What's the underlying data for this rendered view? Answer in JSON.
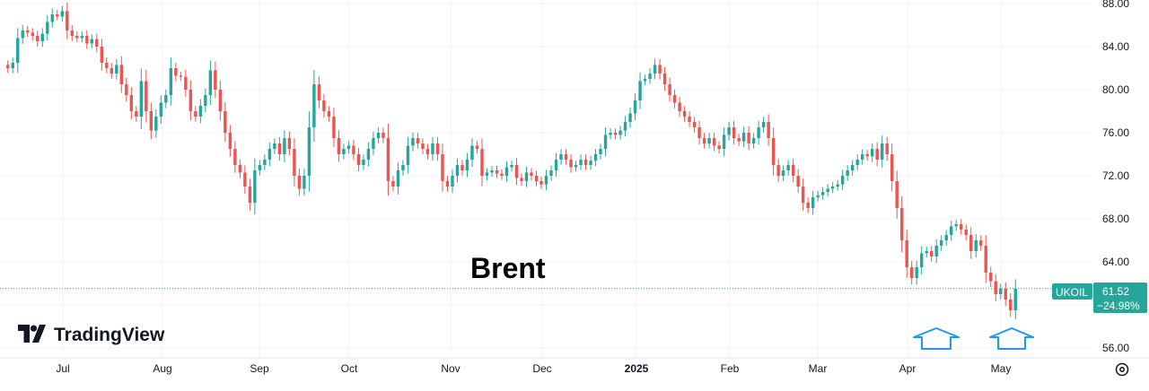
{
  "chart_data": {
    "type": "candlestick",
    "title": "",
    "annotation": "Brent",
    "watermark": "TradingView",
    "symbol": "UKOIL",
    "last_price": "61.52",
    "change_pct": "−24.98%",
    "ylim": [
      55,
      88.5
    ],
    "y_ticks": [
      "56.00",
      "60.00",
      "64.00",
      "68.00",
      "72.00",
      "76.00",
      "80.00",
      "84.00",
      "88.00"
    ],
    "x_ticks": [
      {
        "label": "Jul",
        "bold": false,
        "month_index": 0
      },
      {
        "label": "Aug",
        "bold": false,
        "month_index": 1
      },
      {
        "label": "Sep",
        "bold": false,
        "month_index": 2
      },
      {
        "label": "Oct",
        "bold": false,
        "month_index": 3
      },
      {
        "label": "Nov",
        "bold": false,
        "month_index": 4
      },
      {
        "label": "Dec",
        "bold": false,
        "month_index": 5
      },
      {
        "label": "2025",
        "bold": true,
        "month_index": 6
      },
      {
        "label": "Feb",
        "bold": false,
        "month_index": 7
      },
      {
        "label": "Mar",
        "bold": false,
        "month_index": 8
      },
      {
        "label": "Apr",
        "bold": false,
        "month_index": 9
      },
      {
        "label": "May",
        "bold": false,
        "month_index": 10
      }
    ],
    "close": [
      82.0,
      82.5,
      84.8,
      85.5,
      85.3,
      85.0,
      84.5,
      85.2,
      86.3,
      87.0,
      86.8,
      87.3,
      85.5,
      85.0,
      84.8,
      85.0,
      84.3,
      84.7,
      84.0,
      82.5,
      82.0,
      81.5,
      82.3,
      80.5,
      79.5,
      78.0,
      77.5,
      80.8,
      78.0,
      76.2,
      77.5,
      78.8,
      79.5,
      82.0,
      81.3,
      81.2,
      80.0,
      78.0,
      77.5,
      78.5,
      79.5,
      81.8,
      80.0,
      78.0,
      76.0,
      74.5,
      73.0,
      72.3,
      71.0,
      69.5,
      72.5,
      73.0,
      73.5,
      74.5,
      75.0,
      74.0,
      75.5,
      74.5,
      72.0,
      70.8,
      72.0,
      76.5,
      80.5,
      79.0,
      78.0,
      77.5,
      75.5,
      74.0,
      74.5,
      74.8,
      74.0,
      73.0,
      73.5,
      74.5,
      75.5,
      76.0,
      75.5,
      71.5,
      71.0,
      72.5,
      73.0,
      74.8,
      75.5,
      75.0,
      74.5,
      74.0,
      75.0,
      74.0,
      71.5,
      71.0,
      72.0,
      73.0,
      72.5,
      73.5,
      74.8,
      74.5,
      72.0,
      72.3,
      72.5,
      72.2,
      72.0,
      72.8,
      73.0,
      71.8,
      71.5,
      72.3,
      72.0,
      71.5,
      71.2,
      72.0,
      72.5,
      73.5,
      74.0,
      73.5,
      72.8,
      73.0,
      73.5,
      73.0,
      73.4,
      74.0,
      74.5,
      75.8,
      76.0,
      75.8,
      76.2,
      77.0,
      77.8,
      79.0,
      80.8,
      81.0,
      81.5,
      82.3,
      81.5,
      80.5,
      79.5,
      78.8,
      78.0,
      77.5,
      77.0,
      76.5,
      75.5,
      75.0,
      75.5,
      74.8,
      74.5,
      75.8,
      76.5,
      75.5,
      75.2,
      76.0,
      75.0,
      75.5,
      76.5,
      77.0,
      75.5,
      73.0,
      72.0,
      72.5,
      73.0,
      72.0,
      71.0,
      69.5,
      69.0,
      70.0,
      70.2,
      70.5,
      70.8,
      71.0,
      71.2,
      72.0,
      72.5,
      73.0,
      73.5,
      74.0,
      73.8,
      74.5,
      73.5,
      75.0,
      74.0,
      71.5,
      69.0,
      66.0,
      63.5,
      62.5,
      63.5,
      64.8,
      65.0,
      64.5,
      65.5,
      66.0,
      66.5,
      67.3,
      67.5,
      67.0,
      66.5,
      65.0,
      66.0,
      65.5,
      63.0,
      62.2,
      61.0,
      61.5,
      60.5,
      59.5,
      61.52
    ],
    "open_first": 82.3
  }
}
